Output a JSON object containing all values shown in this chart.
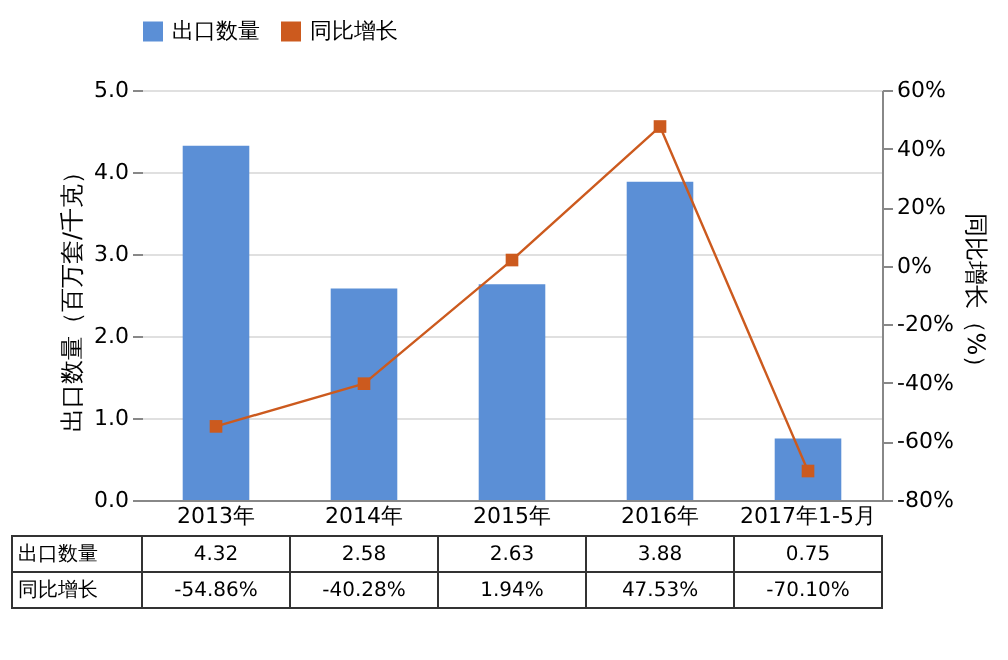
{
  "chart_data": {
    "type": "bar",
    "categories": [
      "2013年",
      "2014年",
      "2015年",
      "2016年",
      "2017年1-5月"
    ],
    "ylabel": "出口数量（百万套/千克）",
    "y2label": "同比增长（%）",
    "ylim": [
      0,
      5
    ],
    "yticks": [
      {
        "value": 0,
        "label": "0.0"
      },
      {
        "value": 1,
        "label": "1.0"
      },
      {
        "value": 2,
        "label": "2.0"
      },
      {
        "value": 3,
        "label": "3.0"
      },
      {
        "value": 4,
        "label": "4.0"
      },
      {
        "value": 5,
        "label": "5.0"
      }
    ],
    "y2lim": [
      -80,
      60
    ],
    "y2ticks": [
      {
        "value": -80,
        "label": "-80%"
      },
      {
        "value": -60,
        "label": "-60%"
      },
      {
        "value": -40,
        "label": "-40%"
      },
      {
        "value": -20,
        "label": "-20%"
      },
      {
        "value": 0,
        "label": "0%"
      },
      {
        "value": 20,
        "label": "20%"
      },
      {
        "value": 40,
        "label": "40%"
      },
      {
        "value": 60,
        "label": "60%"
      }
    ],
    "grid": "y",
    "legend": "top",
    "series": [
      {
        "name": "出口数量",
        "color": "#5b8fd6",
        "values": [
          4.32,
          2.58,
          2.63,
          3.88,
          0.75
        ],
        "value_labels": [
          "4.32",
          "2.58",
          "2.63",
          "3.88",
          "0.75"
        ]
      },
      {
        "name": "同比增长",
        "type": "line",
        "axis": "y2",
        "color": "#cc5a1e",
        "marker": "square",
        "values": [
          -54.86,
          -40.28,
          1.94,
          47.53,
          -70.1
        ],
        "value_labels": [
          "-54.86%",
          "-40.28%",
          "1.94%",
          "47.53%",
          "-70.10%"
        ]
      }
    ]
  }
}
